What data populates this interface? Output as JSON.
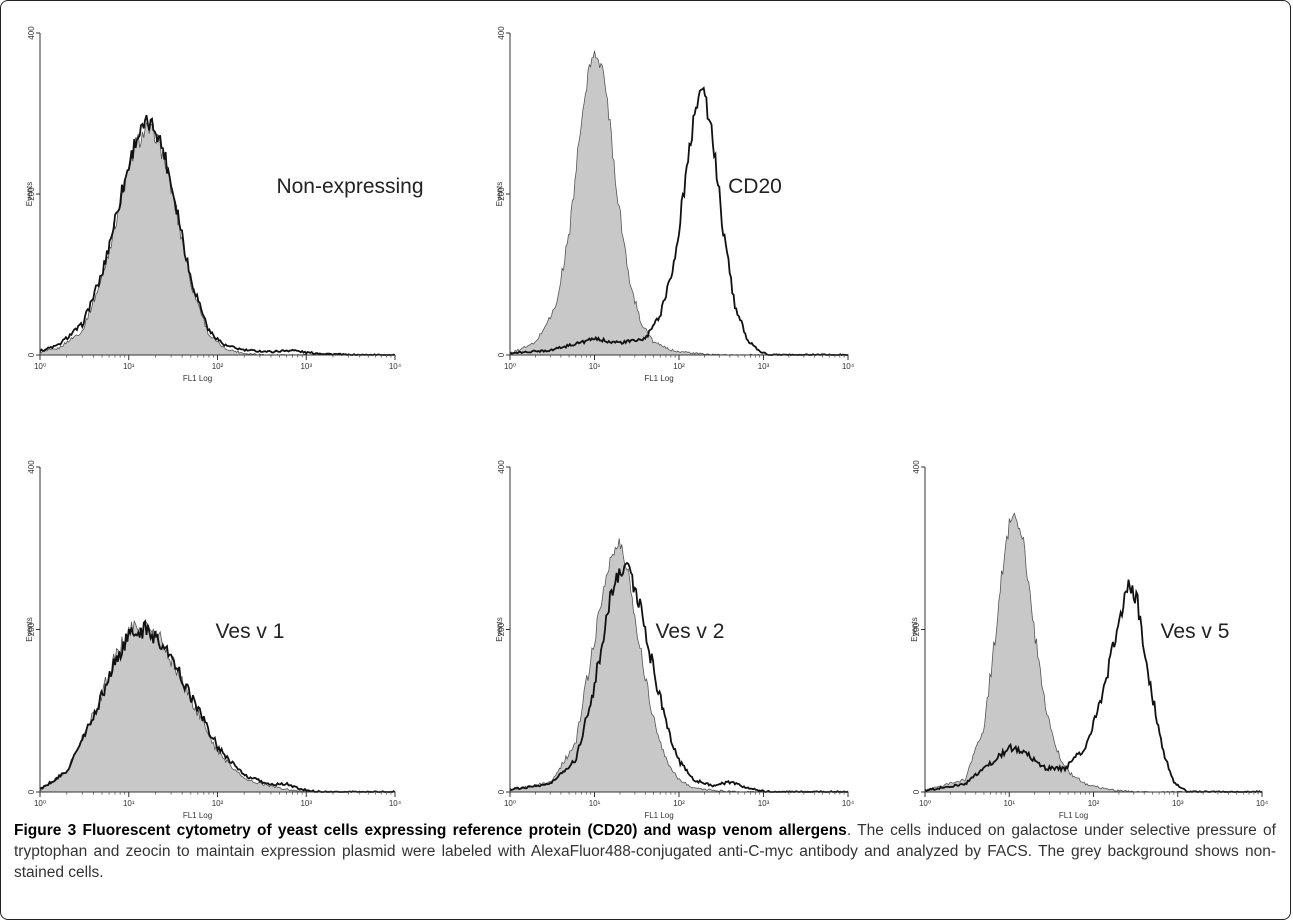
{
  "chart_data": [
    {
      "type": "area",
      "annotation": "Non-expressing",
      "xlabel": "FL1 Log",
      "ylabel": "Events",
      "xscale": "log",
      "xlim": [
        1,
        10000
      ],
      "ylim": [
        0,
        400
      ],
      "x_tick_labels": [
        "10⁰",
        "10¹",
        "10²",
        "10³",
        "10⁴"
      ],
      "y_tick_labels": [
        "0",
        "200",
        "400"
      ],
      "series": [
        {
          "fill": "#c8c8c8",
          "x": [
            1,
            1.6,
            3,
            5,
            8,
            12,
            16,
            20,
            25,
            35,
            50,
            80,
            120,
            200,
            400,
            1000,
            3000
          ],
          "values": [
            3,
            8,
            30,
            95,
            190,
            262,
            280,
            275,
            245,
            175,
            90,
            25,
            8,
            2,
            0,
            0,
            0
          ]
        },
        {
          "fill": "none",
          "x": [
            1,
            1.6,
            3,
            5,
            8,
            12,
            16,
            20,
            25,
            35,
            50,
            80,
            120,
            200,
            400,
            700,
            1000,
            3000
          ],
          "values": [
            5,
            12,
            38,
            100,
            195,
            268,
            288,
            282,
            252,
            182,
            95,
            30,
            12,
            6,
            4,
            6,
            3,
            0
          ]
        }
      ]
    },
    {
      "type": "area",
      "annotation": "CD20",
      "xlabel": "FL1 Log",
      "ylabel": "Events",
      "xscale": "log",
      "xlim": [
        1,
        10000
      ],
      "ylim": [
        0,
        400
      ],
      "x_tick_labels": [
        "10⁰",
        "10¹",
        "10²",
        "10³",
        "10⁴"
      ],
      "y_tick_labels": [
        "0",
        "200",
        "400"
      ],
      "series": [
        {
          "fill": "#c8c8c8",
          "x": [
            1,
            2,
            3.5,
            5,
            7,
            9,
            11,
            14,
            18,
            25,
            35,
            50,
            80,
            150,
            300
          ],
          "values": [
            2,
            15,
            60,
            150,
            290,
            365,
            375,
            325,
            215,
            100,
            42,
            16,
            6,
            2,
            0
          ]
        },
        {
          "fill": "none",
          "x": [
            1,
            3,
            6,
            10,
            20,
            40,
            60,
            90,
            120,
            160,
            190,
            250,
            330,
            450,
            650,
            900,
            1200
          ],
          "values": [
            2,
            6,
            14,
            20,
            15,
            20,
            50,
            120,
            220,
            315,
            335,
            270,
            160,
            65,
            18,
            4,
            0
          ]
        }
      ]
    },
    {
      "type": "area",
      "annotation": "Ves v 1",
      "xlabel": "FL1 Log",
      "ylabel": "Events",
      "xscale": "log",
      "xlim": [
        1,
        10000
      ],
      "ylim": [
        0,
        400
      ],
      "x_tick_labels": [
        "10⁰",
        "10¹",
        "10²",
        "10³",
        "10⁴"
      ],
      "y_tick_labels": [
        "0",
        "200",
        "400"
      ],
      "series": [
        {
          "fill": "#c8c8c8",
          "x": [
            1,
            2,
            4,
            7,
            10,
            15,
            22,
            35,
            55,
            100,
            200,
            400,
            700,
            1500
          ],
          "values": [
            2,
            25,
            95,
            165,
            198,
            205,
            190,
            150,
            105,
            50,
            16,
            7,
            2,
            0
          ]
        },
        {
          "fill": "none",
          "x": [
            1,
            2,
            4,
            7,
            10,
            15,
            22,
            35,
            55,
            100,
            200,
            400,
            600,
            900,
            1500
          ],
          "values": [
            3,
            25,
            92,
            160,
            192,
            200,
            188,
            152,
            110,
            56,
            20,
            9,
            10,
            3,
            0
          ]
        }
      ]
    },
    {
      "type": "area",
      "annotation": "Ves v 2",
      "xlabel": "FL1 Log",
      "ylabel": "Events",
      "xscale": "log",
      "xlim": [
        1,
        10000
      ],
      "ylim": [
        0,
        400
      ],
      "x_tick_labels": [
        "10⁰",
        "10¹",
        "10²",
        "10³",
        "10⁴"
      ],
      "y_tick_labels": [
        "0",
        "200",
        "400"
      ],
      "series": [
        {
          "fill": "#c8c8c8",
          "x": [
            1,
            3,
            6,
            10,
            15,
            20,
            25,
            35,
            50,
            70,
            100,
            150,
            250,
            500
          ],
          "values": [
            2,
            12,
            60,
            190,
            285,
            305,
            270,
            175,
            90,
            40,
            15,
            5,
            2,
            0
          ]
        },
        {
          "fill": "none",
          "x": [
            1,
            3,
            6,
            10,
            15,
            20,
            25,
            35,
            50,
            70,
            100,
            150,
            250,
            400,
            700,
            1200
          ],
          "values": [
            3,
            10,
            40,
            130,
            235,
            275,
            280,
            225,
            150,
            85,
            38,
            15,
            8,
            12,
            4,
            0
          ]
        }
      ]
    },
    {
      "type": "area",
      "annotation": "Ves v 5",
      "xlabel": "FL1 Log",
      "ylabel": "Events",
      "xscale": "log",
      "xlim": [
        1,
        10000
      ],
      "ylim": [
        0,
        400
      ],
      "x_tick_labels": [
        "10⁰",
        "10¹",
        "10²",
        "10³",
        "10⁴"
      ],
      "y_tick_labels": [
        "0",
        "200",
        "400"
      ],
      "series": [
        {
          "fill": "#c8c8c8",
          "x": [
            1,
            3,
            5,
            7,
            9,
            11,
            14,
            18,
            25,
            35,
            50,
            80,
            150,
            300
          ],
          "values": [
            2,
            15,
            80,
            200,
            310,
            345,
            325,
            235,
            120,
            55,
            25,
            10,
            3,
            0
          ]
        },
        {
          "fill": "none",
          "x": [
            1,
            3,
            6,
            10,
            15,
            25,
            45,
            80,
            130,
            200,
            260,
            330,
            450,
            650,
            900,
            1300
          ],
          "values": [
            2,
            10,
            35,
            55,
            50,
            30,
            28,
            55,
            120,
            210,
            255,
            235,
            145,
            55,
            12,
            0
          ]
        }
      ]
    }
  ],
  "caption": {
    "figure_label": "Figure 3",
    "title": "Fluorescent cytometry of yeast cells expressing reference protein (CD20) and wasp venom allergens",
    "text": ". The cells induced on galactose under selective pressure of tryptophan and zeocin to maintain expression plasmid were labeled with AlexaFluor488-conjugated anti-C-myc antibody and analyzed by FACS. The grey background shows non-stained cells."
  }
}
